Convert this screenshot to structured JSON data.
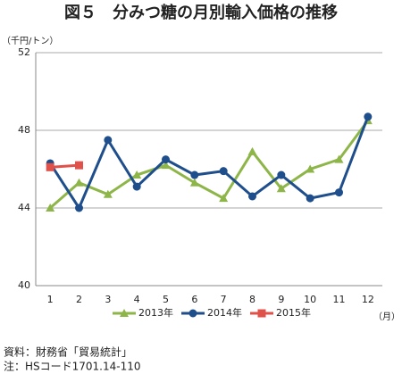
{
  "chart_data": {
    "type": "line",
    "title": "図５　分みつ糖の月別輸入価格の推移",
    "y_label": "（千円/トン）",
    "x_label": "（月）",
    "categories": [
      "1",
      "2",
      "3",
      "4",
      "5",
      "6",
      "7",
      "8",
      "9",
      "10",
      "11",
      "12"
    ],
    "series": [
      {
        "name": "2013年",
        "color": "#8db548",
        "marker": "triangle",
        "values": [
          44.0,
          45.3,
          44.7,
          45.7,
          46.2,
          45.3,
          44.5,
          46.9,
          45.0,
          46.0,
          46.5,
          48.5
        ]
      },
      {
        "name": "2014年",
        "color": "#1f4e8c",
        "marker": "circle",
        "values": [
          46.3,
          44.0,
          47.5,
          45.1,
          46.5,
          45.7,
          45.9,
          44.6,
          45.7,
          44.5,
          44.8,
          48.7
        ]
      },
      {
        "name": "2015年",
        "color": "#e0514a",
        "marker": "square",
        "values": [
          46.1,
          46.2,
          null,
          null,
          null,
          null,
          null,
          null,
          null,
          null,
          null,
          null
        ]
      }
    ],
    "ylim": [
      40,
      52
    ],
    "yticks": [
      40,
      44,
      48,
      52
    ],
    "grid": true,
    "legend": "bottom",
    "notes": [
      "資料：財務省「貿易統計」",
      "注：HSコード1701.14-110"
    ]
  }
}
